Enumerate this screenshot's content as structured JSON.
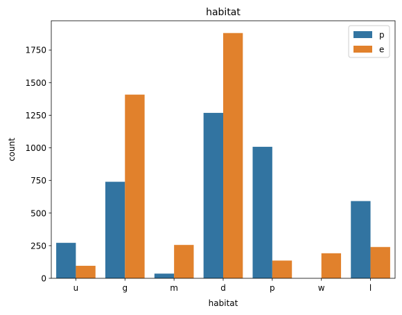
{
  "chart_data": {
    "type": "bar",
    "title": "habitat",
    "xlabel": "habitat",
    "ylabel": "count",
    "categories": [
      "u",
      "g",
      "m",
      "d",
      "p",
      "w",
      "l"
    ],
    "series": [
      {
        "name": "p",
        "values": [
          272,
          740,
          36,
          1268,
          1008,
          0,
          592
        ]
      },
      {
        "name": "e",
        "values": [
          96,
          1408,
          256,
          1880,
          136,
          192,
          240
        ]
      }
    ],
    "ylim": [
      0,
      1974
    ],
    "yticks": [
      0,
      250,
      500,
      750,
      1000,
      1250,
      1500,
      1750
    ],
    "grid": false,
    "legend_position": "top-right",
    "colors": {
      "p": "#3274a1",
      "e": "#e1812c"
    }
  }
}
